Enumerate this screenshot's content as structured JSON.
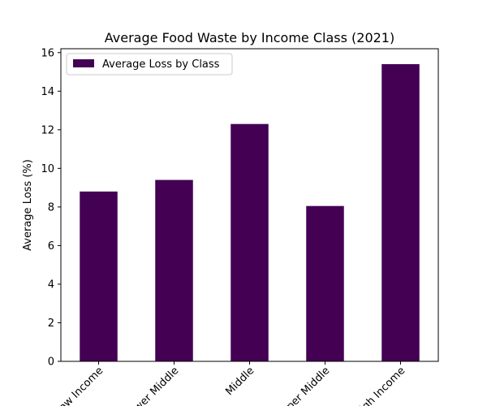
{
  "chart_data": {
    "type": "bar",
    "title": "Average Food Waste by Income Class (2021)",
    "xlabel": "",
    "ylabel": "Average Loss (%)",
    "categories": [
      "Low Income",
      "Lower Middle",
      "Middle",
      "Upper Middle",
      "High Income"
    ],
    "series": [
      {
        "name": "Average Loss by Class",
        "values": [
          8.8,
          9.4,
          12.3,
          8.05,
          15.4
        ]
      }
    ],
    "ylim": [
      0,
      16.2
    ],
    "yticks": [
      0,
      2,
      4,
      6,
      8,
      10,
      12,
      14,
      16
    ],
    "legend": "top-left",
    "grid": false,
    "bar_color": "#440154"
  }
}
